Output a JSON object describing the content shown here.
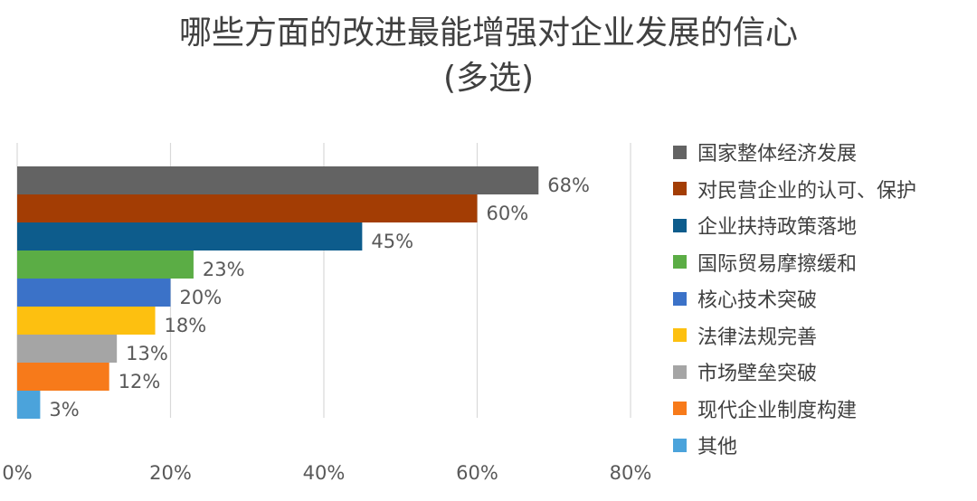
{
  "chart_data": {
    "type": "bar",
    "orientation": "horizontal",
    "title": "哪些方面的改进最能增强对企业发展的信心",
    "subtitle": "(多选)",
    "categories": [
      "国家整体经济发展",
      "对民营企业的认可、保护",
      "企业扶持政策落地",
      "国际贸易摩擦缓和",
      "核心技术突破",
      "法律法规完善",
      "市场壁垒突破",
      "现代企业制度构建",
      "其他"
    ],
    "values": [
      68,
      60,
      45,
      23,
      20,
      18,
      13,
      12,
      3
    ],
    "value_labels": [
      "68%",
      "60%",
      "45%",
      "23%",
      "20%",
      "18%",
      "13%",
      "12%",
      "3%"
    ],
    "colors": [
      "#636363",
      "#A33D04",
      "#0D5C8C",
      "#5BAD45",
      "#3B72C8",
      "#FDC010",
      "#A5A5A5",
      "#F77A1A",
      "#4BA3DB"
    ],
    "xlim": [
      0,
      80
    ],
    "xticks": [
      0,
      20,
      40,
      60,
      80
    ],
    "xtick_labels": [
      "0%",
      "20%",
      "40%",
      "60%",
      "80%"
    ],
    "grid": "vertical",
    "legend": "right"
  }
}
